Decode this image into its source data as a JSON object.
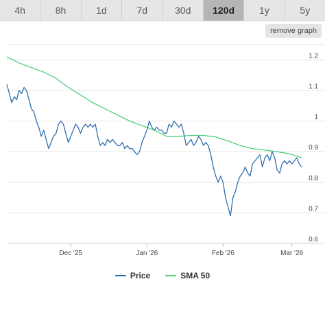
{
  "tabs": [
    {
      "label": "4h",
      "active": false
    },
    {
      "label": "8h",
      "active": false
    },
    {
      "label": "1d",
      "active": false
    },
    {
      "label": "7d",
      "active": false
    },
    {
      "label": "30d",
      "active": false
    },
    {
      "label": "120d",
      "active": true
    },
    {
      "label": "1y",
      "active": false
    },
    {
      "label": "5y",
      "active": false
    }
  ],
  "remove_graph_label": "remove graph",
  "chart_data": {
    "type": "line",
    "ylim": [
      0.6,
      1.25
    ],
    "yticks": [
      "0.6",
      "0.7",
      "0.8",
      "0.9",
      "1",
      "1.1",
      "1.2"
    ],
    "xticks": [
      "Dec '25",
      "Jan '26",
      "Feb '26",
      "Mar '26"
    ],
    "xlim": [
      "2025-11-05",
      "2026-03-05"
    ],
    "xtick_dates": [
      "2025-12-01",
      "2026-01-01",
      "2026-02-01",
      "2026-03-01"
    ],
    "grid": true,
    "legend_position": "bottom",
    "series": [
      {
        "name": "Price",
        "color": "#2f6fb0",
        "points": [
          [
            "2025-11-05",
            1.12
          ],
          [
            "2025-11-06",
            1.09
          ],
          [
            "2025-11-07",
            1.06
          ],
          [
            "2025-11-08",
            1.08
          ],
          [
            "2025-11-09",
            1.07
          ],
          [
            "2025-11-10",
            1.1
          ],
          [
            "2025-11-11",
            1.09
          ],
          [
            "2025-11-12",
            1.11
          ],
          [
            "2025-11-13",
            1.1
          ],
          [
            "2025-11-14",
            1.07
          ],
          [
            "2025-11-15",
            1.04
          ],
          [
            "2025-11-16",
            1.03
          ],
          [
            "2025-11-17",
            1.0
          ],
          [
            "2025-11-18",
            0.98
          ],
          [
            "2025-11-19",
            0.95
          ],
          [
            "2025-11-20",
            0.97
          ],
          [
            "2025-11-21",
            0.94
          ],
          [
            "2025-11-22",
            0.91
          ],
          [
            "2025-11-23",
            0.93
          ],
          [
            "2025-11-24",
            0.95
          ],
          [
            "2025-11-25",
            0.96
          ],
          [
            "2025-11-26",
            0.99
          ],
          [
            "2025-11-27",
            1.0
          ],
          [
            "2025-11-28",
            0.99
          ],
          [
            "2025-11-29",
            0.96
          ],
          [
            "2025-11-30",
            0.93
          ],
          [
            "2025-12-01",
            0.95
          ],
          [
            "2025-12-02",
            0.97
          ],
          [
            "2025-12-03",
            0.99
          ],
          [
            "2025-12-04",
            0.98
          ],
          [
            "2025-12-05",
            0.96
          ],
          [
            "2025-12-06",
            0.98
          ],
          [
            "2025-12-07",
            0.99
          ],
          [
            "2025-12-08",
            0.98
          ],
          [
            "2025-12-09",
            0.99
          ],
          [
            "2025-12-10",
            0.98
          ],
          [
            "2025-12-11",
            0.99
          ],
          [
            "2025-12-12",
            0.95
          ],
          [
            "2025-12-13",
            0.92
          ],
          [
            "2025-12-14",
            0.93
          ],
          [
            "2025-12-15",
            0.92
          ],
          [
            "2025-12-16",
            0.94
          ],
          [
            "2025-12-17",
            0.93
          ],
          [
            "2025-12-18",
            0.94
          ],
          [
            "2025-12-19",
            0.93
          ],
          [
            "2025-12-20",
            0.92
          ],
          [
            "2025-12-21",
            0.92
          ],
          [
            "2025-12-22",
            0.93
          ],
          [
            "2025-12-23",
            0.91
          ],
          [
            "2025-12-24",
            0.92
          ],
          [
            "2025-12-25",
            0.91
          ],
          [
            "2025-12-26",
            0.91
          ],
          [
            "2025-12-27",
            0.9
          ],
          [
            "2025-12-28",
            0.89
          ],
          [
            "2025-12-29",
            0.9
          ],
          [
            "2025-12-30",
            0.93
          ],
          [
            "2025-12-31",
            0.95
          ],
          [
            "2026-01-01",
            0.97
          ],
          [
            "2026-01-02",
            1.0
          ],
          [
            "2026-01-03",
            0.98
          ],
          [
            "2026-01-04",
            0.97
          ],
          [
            "2026-01-05",
            0.98
          ],
          [
            "2026-01-06",
            0.97
          ],
          [
            "2026-01-07",
            0.97
          ],
          [
            "2026-01-08",
            0.96
          ],
          [
            "2026-01-09",
            0.96
          ],
          [
            "2026-01-10",
            0.99
          ],
          [
            "2026-01-11",
            0.98
          ],
          [
            "2026-01-12",
            1.0
          ],
          [
            "2026-01-13",
            0.99
          ],
          [
            "2026-01-14",
            0.98
          ],
          [
            "2026-01-15",
            0.99
          ],
          [
            "2026-01-16",
            0.96
          ],
          [
            "2026-01-17",
            0.92
          ],
          [
            "2026-01-18",
            0.93
          ],
          [
            "2026-01-19",
            0.94
          ],
          [
            "2026-01-20",
            0.92
          ],
          [
            "2026-01-21",
            0.93
          ],
          [
            "2026-01-22",
            0.95
          ],
          [
            "2026-01-23",
            0.94
          ],
          [
            "2026-01-24",
            0.92
          ],
          [
            "2026-01-25",
            0.93
          ],
          [
            "2026-01-26",
            0.92
          ],
          [
            "2026-01-27",
            0.89
          ],
          [
            "2026-01-28",
            0.85
          ],
          [
            "2026-01-29",
            0.82
          ],
          [
            "2026-01-30",
            0.8
          ],
          [
            "2026-01-31",
            0.82
          ],
          [
            "2026-02-01",
            0.8
          ],
          [
            "2026-02-02",
            0.75
          ],
          [
            "2026-02-03",
            0.72
          ],
          [
            "2026-02-04",
            0.69
          ],
          [
            "2026-02-05",
            0.75
          ],
          [
            "2026-02-06",
            0.77
          ],
          [
            "2026-02-07",
            0.8
          ],
          [
            "2026-02-08",
            0.82
          ],
          [
            "2026-02-09",
            0.83
          ],
          [
            "2026-02-10",
            0.85
          ],
          [
            "2026-02-11",
            0.83
          ],
          [
            "2026-02-12",
            0.82
          ],
          [
            "2026-02-13",
            0.86
          ],
          [
            "2026-02-14",
            0.87
          ],
          [
            "2026-02-15",
            0.88
          ],
          [
            "2026-02-16",
            0.89
          ],
          [
            "2026-02-17",
            0.85
          ],
          [
            "2026-02-18",
            0.88
          ],
          [
            "2026-02-19",
            0.89
          ],
          [
            "2026-02-20",
            0.87
          ],
          [
            "2026-02-21",
            0.9
          ],
          [
            "2026-02-22",
            0.88
          ],
          [
            "2026-02-23",
            0.84
          ],
          [
            "2026-02-24",
            0.83
          ],
          [
            "2026-02-25",
            0.86
          ],
          [
            "2026-02-26",
            0.87
          ],
          [
            "2026-02-27",
            0.86
          ],
          [
            "2026-02-28",
            0.87
          ],
          [
            "2026-03-01",
            0.86
          ],
          [
            "2026-03-02",
            0.87
          ],
          [
            "2026-03-03",
            0.88
          ],
          [
            "2026-03-04",
            0.86
          ],
          [
            "2026-03-05",
            0.85
          ]
        ]
      },
      {
        "name": "SMA 50",
        "color": "#4fcf7a",
        "points": [
          [
            "2025-11-05",
            1.21
          ],
          [
            "2025-11-10",
            1.19
          ],
          [
            "2025-11-15",
            1.175
          ],
          [
            "2025-11-20",
            1.16
          ],
          [
            "2025-11-25",
            1.14
          ],
          [
            "2025-11-30",
            1.11
          ],
          [
            "2025-12-05",
            1.085
          ],
          [
            "2025-12-10",
            1.06
          ],
          [
            "2025-12-15",
            1.04
          ],
          [
            "2025-12-20",
            1.02
          ],
          [
            "2025-12-25",
            1.0
          ],
          [
            "2025-12-30",
            0.985
          ],
          [
            "2026-01-04",
            0.97
          ],
          [
            "2026-01-09",
            0.95
          ],
          [
            "2026-01-14",
            0.95
          ],
          [
            "2026-01-19",
            0.953
          ],
          [
            "2026-01-24",
            0.953
          ],
          [
            "2026-01-29",
            0.948
          ],
          [
            "2026-02-03",
            0.935
          ],
          [
            "2026-02-08",
            0.92
          ],
          [
            "2026-02-13",
            0.91
          ],
          [
            "2026-02-18",
            0.905
          ],
          [
            "2026-02-23",
            0.9
          ],
          [
            "2026-02-28",
            0.893
          ],
          [
            "2026-03-05",
            0.88
          ]
        ]
      }
    ]
  }
}
